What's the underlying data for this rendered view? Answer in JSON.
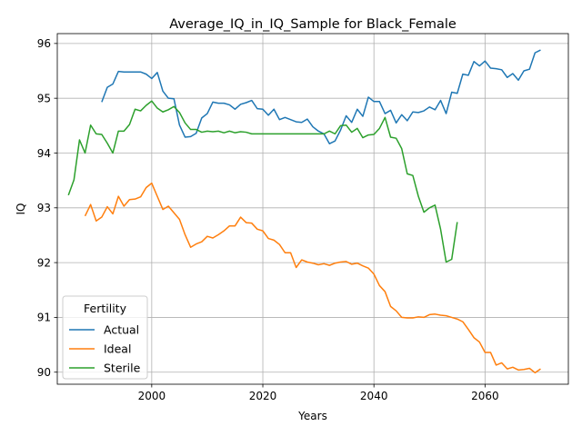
{
  "chart_data": {
    "type": "line",
    "title": "Average_IQ_in_IQ_Sample for Black_Female",
    "xlabel": "Years",
    "ylabel": "IQ",
    "xlim": [
      1983,
      2075
    ],
    "ylim": [
      89.78,
      96.18
    ],
    "xticks": [
      2000,
      2020,
      2040,
      2060
    ],
    "yticks": [
      90,
      91,
      92,
      93,
      94,
      95,
      96
    ],
    "grid": true,
    "legend": {
      "title": "Fertility",
      "placement": "lower-left"
    },
    "series": [
      {
        "name": "Actual",
        "color": "#1f77b4",
        "x": [
          1991,
          1992,
          1993,
          1994,
          1995,
          1996,
          1997,
          1998,
          1999,
          2000,
          2001,
          2002,
          2003,
          2004,
          2005,
          2006,
          2007,
          2008,
          2009,
          2010,
          2011,
          2012,
          2013,
          2014,
          2015,
          2016,
          2017,
          2018,
          2019,
          2020,
          2021,
          2022,
          2023,
          2024,
          2025,
          2026,
          2027,
          2028,
          2029,
          2030,
          2031,
          2032,
          2033,
          2034,
          2035,
          2036,
          2037,
          2038,
          2039,
          2040,
          2041,
          2042,
          2043,
          2044,
          2045,
          2046,
          2047,
          2048,
          2049,
          2050,
          2051,
          2052,
          2053,
          2054,
          2055,
          2056,
          2057,
          2058,
          2059,
          2060,
          2061,
          2062,
          2063,
          2064,
          2065,
          2066,
          2067,
          2068,
          2069,
          2070
        ],
        "values": [
          94.93,
          95.2,
          95.26,
          95.49,
          95.48,
          95.48,
          95.48,
          95.48,
          95.44,
          95.36,
          95.47,
          95.13,
          95.0,
          94.99,
          94.51,
          94.29,
          94.3,
          94.36,
          94.64,
          94.72,
          94.93,
          94.91,
          94.91,
          94.88,
          94.8,
          94.89,
          94.92,
          94.96,
          94.81,
          94.8,
          94.69,
          94.8,
          94.61,
          94.65,
          94.61,
          94.57,
          94.56,
          94.62,
          94.48,
          94.4,
          94.35,
          94.17,
          94.22,
          94.42,
          94.68,
          94.56,
          94.8,
          94.67,
          95.02,
          94.94,
          94.94,
          94.72,
          94.78,
          94.55,
          94.7,
          94.59,
          94.75,
          94.74,
          94.77,
          94.84,
          94.79,
          94.96,
          94.72,
          95.11,
          95.09,
          95.44,
          95.42,
          95.67,
          95.59,
          95.68,
          95.55,
          95.54,
          95.52,
          95.38,
          95.45,
          95.33,
          95.5,
          95.53,
          95.83,
          95.88
        ]
      },
      {
        "name": "Ideal",
        "color": "#ff7f0e",
        "x": [
          1988,
          1989,
          1990,
          1991,
          1992,
          1993,
          1994,
          1995,
          1996,
          1997,
          1998,
          1999,
          2000,
          2001,
          2002,
          2003,
          2004,
          2005,
          2006,
          2007,
          2008,
          2009,
          2010,
          2011,
          2012,
          2013,
          2014,
          2015,
          2016,
          2017,
          2018,
          2019,
          2020,
          2021,
          2022,
          2023,
          2024,
          2025,
          2026,
          2027,
          2028,
          2029,
          2030,
          2031,
          2032,
          2033,
          2034,
          2035,
          2036,
          2037,
          2038,
          2039,
          2040,
          2041,
          2042,
          2043,
          2044,
          2045,
          2046,
          2047,
          2048,
          2049,
          2050,
          2051,
          2052,
          2053,
          2054,
          2055,
          2056,
          2057,
          2058,
          2059,
          2060,
          2061,
          2062,
          2063,
          2064,
          2065,
          2066,
          2067,
          2068,
          2069,
          2070
        ],
        "values": [
          92.85,
          93.06,
          92.76,
          92.83,
          93.02,
          92.89,
          93.21,
          93.03,
          93.15,
          93.16,
          93.2,
          93.37,
          93.45,
          93.21,
          92.97,
          93.03,
          92.91,
          92.79,
          92.51,
          92.28,
          92.34,
          92.38,
          92.48,
          92.45,
          92.51,
          92.58,
          92.67,
          92.67,
          92.83,
          92.73,
          92.72,
          92.61,
          92.58,
          92.44,
          92.41,
          92.33,
          92.18,
          92.18,
          91.91,
          92.05,
          92.01,
          91.99,
          91.96,
          91.98,
          91.95,
          91.99,
          92.01,
          92.02,
          91.97,
          91.99,
          91.94,
          91.9,
          91.79,
          91.58,
          91.47,
          91.2,
          91.12,
          91.0,
          90.99,
          90.99,
          91.01,
          91.0,
          91.05,
          91.06,
          91.04,
          91.03,
          91.0,
          90.97,
          90.92,
          90.78,
          90.63,
          90.55,
          90.36,
          90.36,
          90.13,
          90.17,
          90.06,
          90.09,
          90.04,
          90.05,
          90.07,
          89.99,
          90.06
        ]
      },
      {
        "name": "Sterile",
        "color": "#2ca02c",
        "x": [
          1985,
          1986,
          1987,
          1988,
          1989,
          1990,
          1991,
          1992,
          1993,
          1994,
          1995,
          1996,
          1997,
          1998,
          1999,
          2000,
          2001,
          2002,
          2003,
          2004,
          2005,
          2006,
          2007,
          2008,
          2009,
          2010,
          2011,
          2012,
          2013,
          2014,
          2015,
          2016,
          2017,
          2018,
          2019,
          2020,
          2021,
          2022,
          2023,
          2024,
          2025,
          2026,
          2027,
          2028,
          2029,
          2030,
          2031,
          2032,
          2033,
          2034,
          2035,
          2036,
          2037,
          2038,
          2039,
          2040,
          2041,
          2042,
          2043,
          2044,
          2045,
          2046,
          2047,
          2048,
          2049,
          2050,
          2051,
          2052,
          2053,
          2054,
          2055
        ],
        "values": [
          93.23,
          93.51,
          94.24,
          94.0,
          94.51,
          94.35,
          94.34,
          94.18,
          94.0,
          94.4,
          94.4,
          94.52,
          94.8,
          94.77,
          94.87,
          94.95,
          94.82,
          94.75,
          94.79,
          94.85,
          94.74,
          94.55,
          94.43,
          94.43,
          94.38,
          94.4,
          94.39,
          94.4,
          94.37,
          94.4,
          94.37,
          94.39,
          94.38,
          94.35,
          94.35,
          94.35,
          94.35,
          94.35,
          94.35,
          94.35,
          94.35,
          94.35,
          94.35,
          94.35,
          94.35,
          94.35,
          94.35,
          94.4,
          94.35,
          94.5,
          94.51,
          94.38,
          94.45,
          94.28,
          94.33,
          94.34,
          94.45,
          94.65,
          94.29,
          94.27,
          94.08,
          93.62,
          93.59,
          93.21,
          92.92,
          93.0,
          93.05,
          92.61,
          92.01,
          92.06,
          92.74
        ]
      }
    ]
  }
}
